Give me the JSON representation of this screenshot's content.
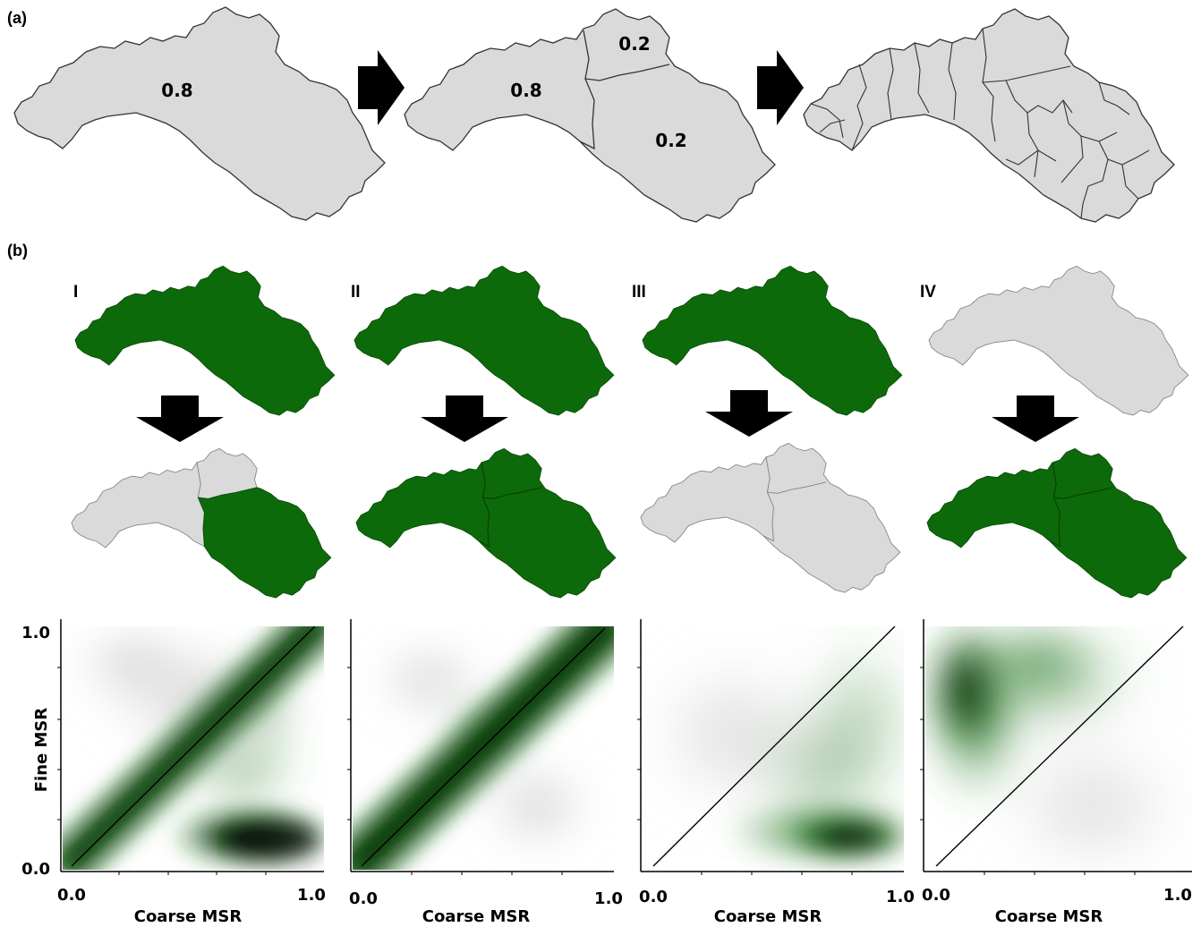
{
  "panel_a": {
    "label": "(a)",
    "step1": {
      "value": "0.8"
    },
    "step2": {
      "upper_value": "0.2",
      "left_value": "0.8",
      "right_value": "0.2"
    }
  },
  "panel_b": {
    "label": "(b)",
    "scenarios": [
      {
        "numeral": "I",
        "coarse_state": "green",
        "fine_state": [
          "grey",
          "grey",
          "green"
        ]
      },
      {
        "numeral": "II",
        "coarse_state": "green",
        "fine_state": [
          "green",
          "green",
          "green"
        ]
      },
      {
        "numeral": "III",
        "coarse_state": "green",
        "fine_state": [
          "grey",
          "grey",
          "grey"
        ]
      },
      {
        "numeral": "IV",
        "coarse_state": "grey",
        "fine_state": [
          "green",
          "green",
          "green"
        ]
      }
    ]
  },
  "colors": {
    "green": "#0c6a0a",
    "grey": "#dadada",
    "outline": "#333333",
    "arrow": "#000000"
  },
  "chart_data": [
    {
      "type": "heatmap",
      "description_of_density": "concentrated along 1:1 line, plus dense cluster at high coarse / low fine",
      "xlabel": "Coarse MSR",
      "ylabel": "Fine MSR",
      "xticks": [
        "0.0",
        "1.0"
      ],
      "yticks": [
        "0.0",
        "1.0"
      ],
      "xlim": [
        0,
        1
      ],
      "ylim": [
        0,
        1
      ],
      "diagonal": true
    },
    {
      "type": "heatmap",
      "xlabel": "Coarse MSR",
      "ylabel": "",
      "xticks": [
        "0.0",
        "1.0"
      ],
      "yticks": [],
      "xlim": [
        0,
        1
      ],
      "ylim": [
        0,
        1
      ],
      "diagonal": true
    },
    {
      "type": "heatmap",
      "xlabel": "Coarse MSR",
      "ylabel": "",
      "xticks": [
        "0.0",
        "1.0"
      ],
      "yticks": [],
      "xlim": [
        0,
        1
      ],
      "ylim": [
        0,
        1
      ],
      "diagonal": true
    },
    {
      "type": "heatmap",
      "xlabel": "Coarse MSR",
      "ylabel": "",
      "xticks": [
        "0.0",
        "1.0"
      ],
      "yticks": [],
      "xlim": [
        0,
        1
      ],
      "ylim": [
        0,
        1
      ],
      "diagonal": true
    }
  ]
}
